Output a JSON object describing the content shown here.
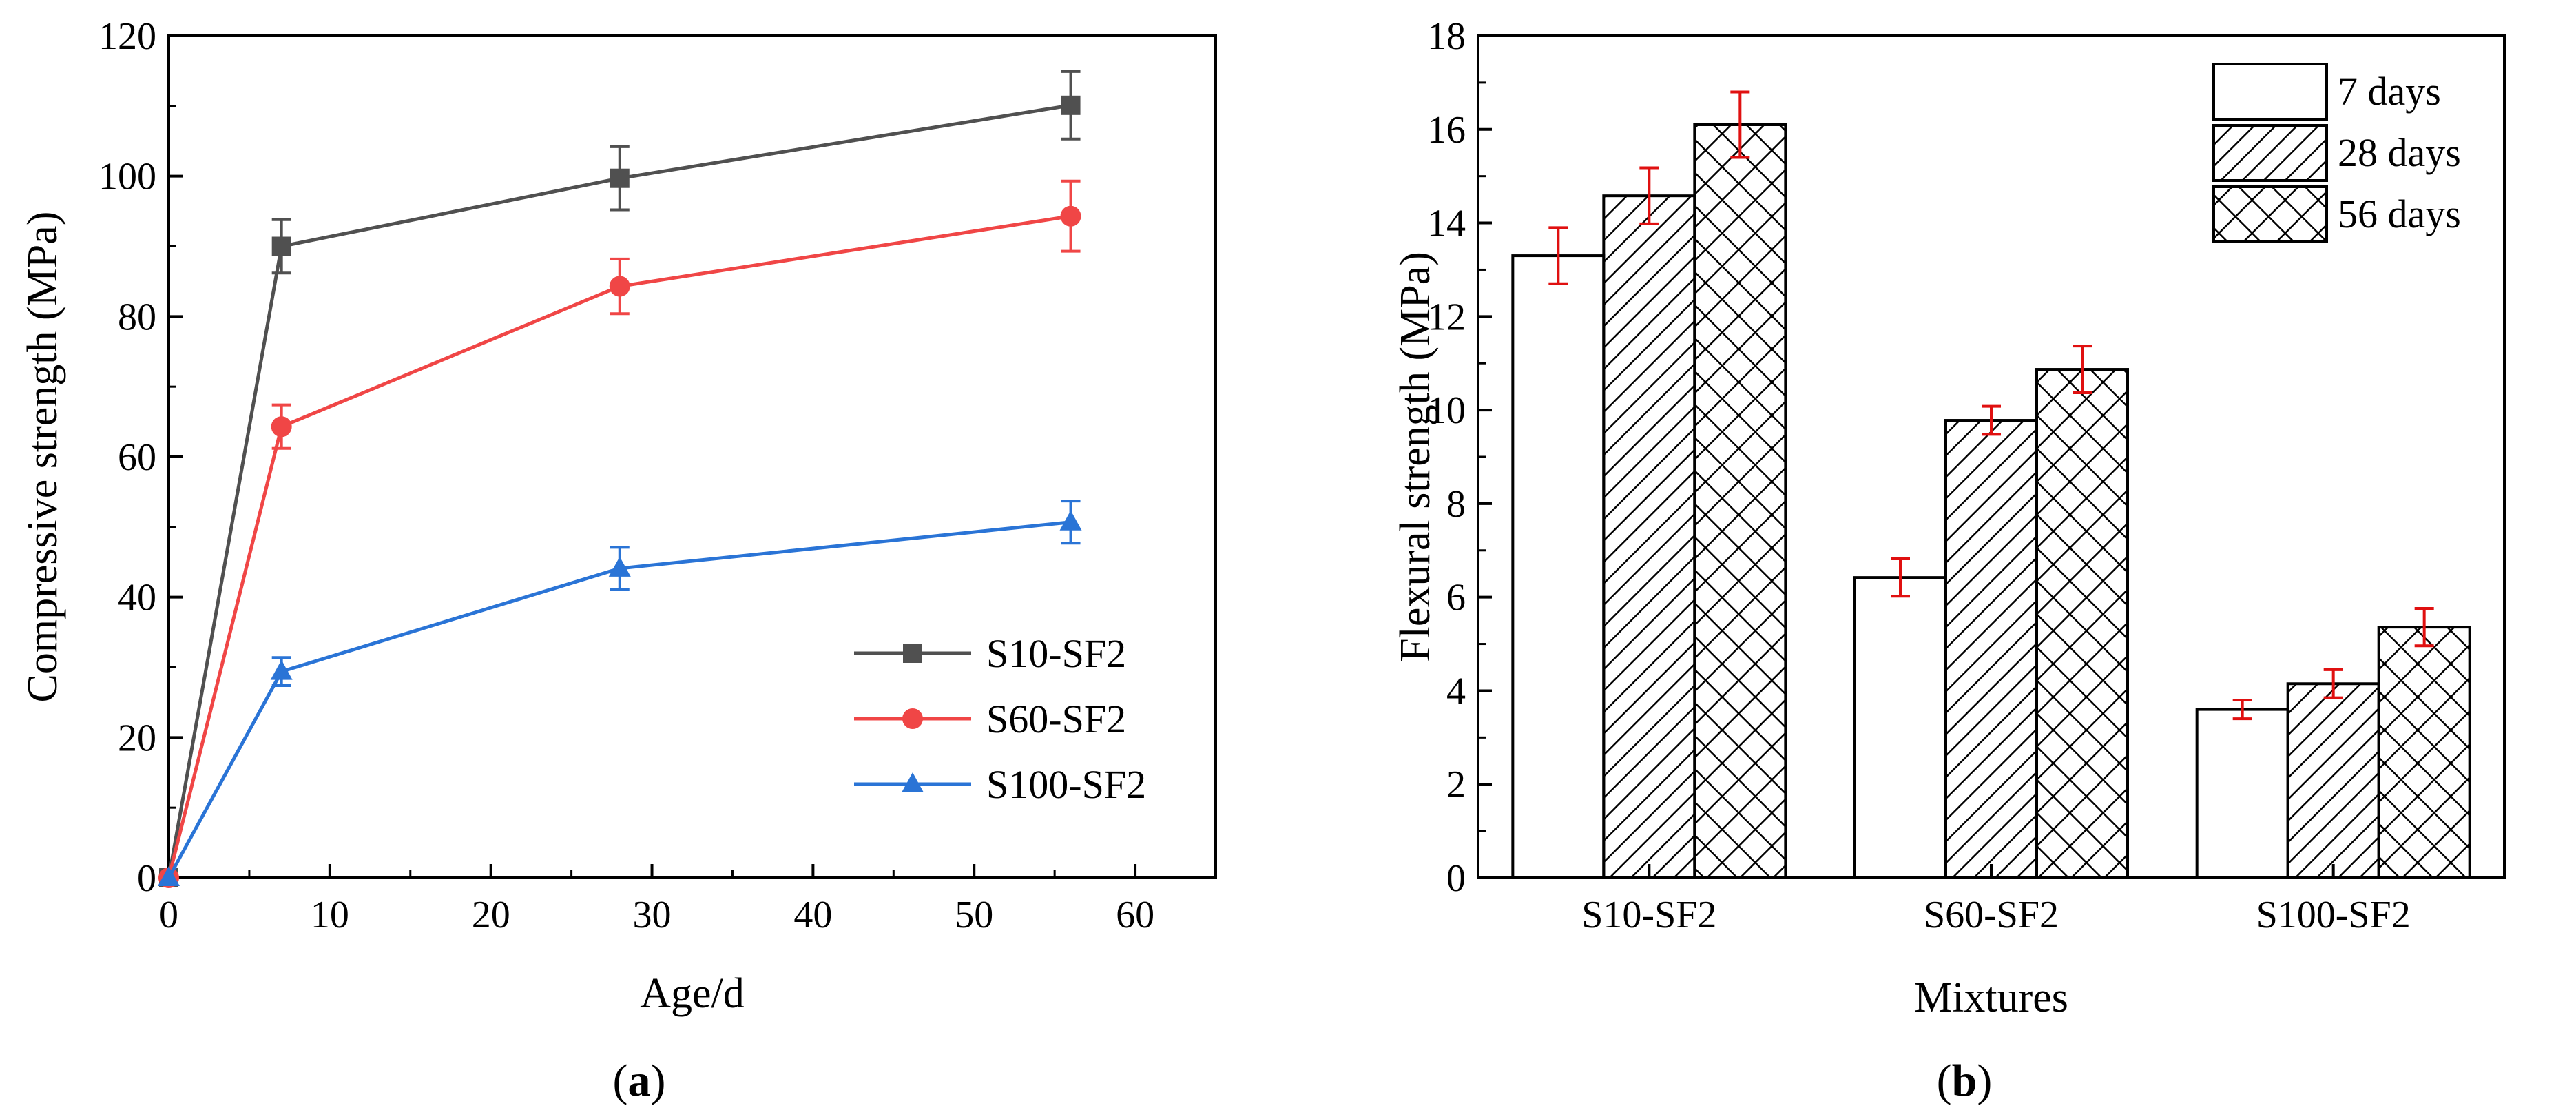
{
  "figure": {
    "panel_a_label": "a",
    "panel_b_label": "b"
  },
  "chart_data": [
    {
      "type": "line",
      "xlabel": "Age/d",
      "ylabel": "Compressive strength (MPa)",
      "xlim": [
        0,
        65
      ],
      "ylim": [
        0,
        120
      ],
      "xticks": [
        0,
        10,
        20,
        30,
        40,
        50,
        60
      ],
      "yticks": [
        0,
        20,
        40,
        60,
        80,
        100,
        120
      ],
      "x": [
        0,
        7,
        28,
        56
      ],
      "legend_position": "lower-right",
      "series": [
        {
          "name": "S10-SF2",
          "color": "#505050",
          "marker": "square",
          "values": [
            0,
            90,
            99.7,
            110.1
          ],
          "errors": [
            0,
            3.8,
            4.5,
            4.8
          ]
        },
        {
          "name": "S60-SF2",
          "color": "#f04646",
          "marker": "circle",
          "values": [
            0,
            64.3,
            84.3,
            94.3
          ],
          "errors": [
            0,
            3.1,
            3.9,
            5.0
          ]
        },
        {
          "name": "S100-SF2",
          "color": "#2a74d6",
          "marker": "triangle",
          "values": [
            0,
            29.4,
            44.1,
            50.7
          ],
          "errors": [
            0,
            2.0,
            3.0,
            3.0
          ]
        }
      ]
    },
    {
      "type": "bar",
      "xlabel": "Mixtures",
      "ylabel": "Flexural strength (MPa)",
      "ylim": [
        0,
        18
      ],
      "yticks": [
        0,
        2,
        4,
        6,
        8,
        10,
        12,
        14,
        16,
        18
      ],
      "categories": [
        "S10-SF2",
        "S60-SF2",
        "S100-SF2"
      ],
      "legend_position": "top-right",
      "error_color": "#e01010",
      "series": [
        {
          "name": "7 days",
          "pattern": "none",
          "values": [
            13.3,
            6.42,
            3.6
          ],
          "errors": [
            0.6,
            0.4,
            0.2
          ]
        },
        {
          "name": "28 days",
          "pattern": "hatch",
          "values": [
            14.58,
            9.78,
            4.15
          ],
          "errors": [
            0.6,
            0.3,
            0.3
          ]
        },
        {
          "name": "56 days",
          "pattern": "crosshatch",
          "values": [
            16.1,
            10.87,
            5.36
          ],
          "errors": [
            0.7,
            0.5,
            0.4
          ]
        }
      ]
    }
  ]
}
